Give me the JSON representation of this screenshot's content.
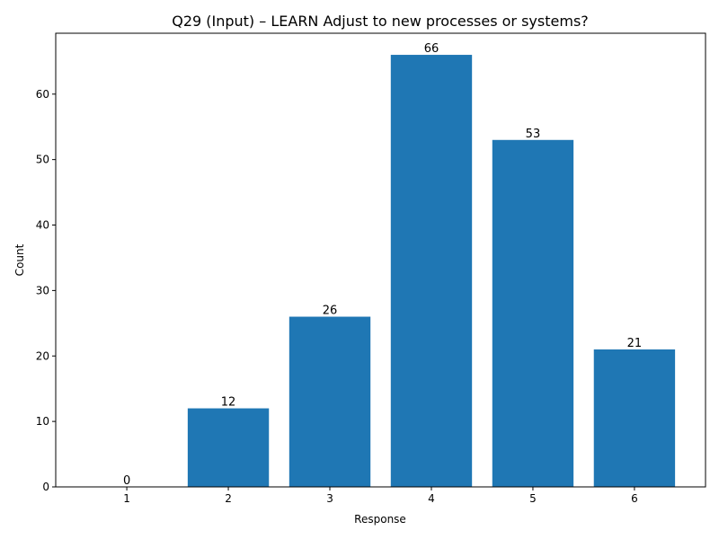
{
  "chart_data": {
    "type": "bar",
    "title": "Q29 (Input) – LEARN Adjust to new processes or systems?",
    "xlabel": "Response",
    "ylabel": "Count",
    "categories": [
      "1",
      "2",
      "3",
      "4",
      "5",
      "6"
    ],
    "values": [
      0,
      12,
      26,
      66,
      53,
      21
    ],
    "data_labels": [
      "0",
      "12",
      "26",
      "66",
      "53",
      "21"
    ],
    "yticks": [
      0,
      10,
      20,
      30,
      40,
      50,
      60
    ],
    "ylim": [
      0,
      69.3
    ],
    "xlim": [
      0.3,
      6.7
    ],
    "bar_color": "#1f77b4",
    "grid": false,
    "legend": "none"
  }
}
